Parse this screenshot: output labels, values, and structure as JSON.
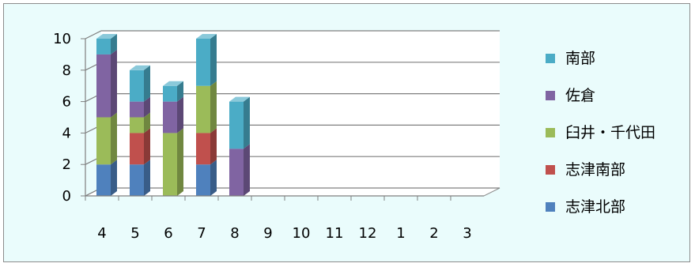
{
  "chart_data": {
    "type": "bar",
    "stacked": true,
    "style": "3d-column",
    "categories": [
      "4",
      "5",
      "6",
      "7",
      "8",
      "9",
      "10",
      "11",
      "12",
      "1",
      "2",
      "3"
    ],
    "series": [
      {
        "name": "志津北部",
        "color": "#4f81bd",
        "values": [
          2,
          2,
          0,
          2,
          0,
          0,
          0,
          0,
          0,
          0,
          0,
          0
        ]
      },
      {
        "name": "志津南部",
        "color": "#c0504d",
        "values": [
          0,
          2,
          0,
          2,
          0,
          0,
          0,
          0,
          0,
          0,
          0,
          0
        ]
      },
      {
        "name": "臼井・千代田",
        "color": "#9bbb59",
        "values": [
          3,
          1,
          4,
          3,
          0,
          0,
          0,
          0,
          0,
          0,
          0,
          0
        ]
      },
      {
        "name": "佐倉",
        "color": "#8064a2",
        "values": [
          4,
          1,
          2,
          0,
          3,
          0,
          0,
          0,
          0,
          0,
          0,
          0
        ]
      },
      {
        "name": "南部",
        "color": "#4bacc6",
        "values": [
          1,
          2,
          1,
          3,
          3,
          0,
          0,
          0,
          0,
          0,
          0,
          0
        ]
      }
    ],
    "yticks": [
      "0",
      "2",
      "4",
      "6",
      "8",
      "10"
    ],
    "ylim": [
      0,
      10
    ],
    "grid": true,
    "legend_position": "right",
    "title": "",
    "xlabel": "",
    "ylabel": ""
  }
}
